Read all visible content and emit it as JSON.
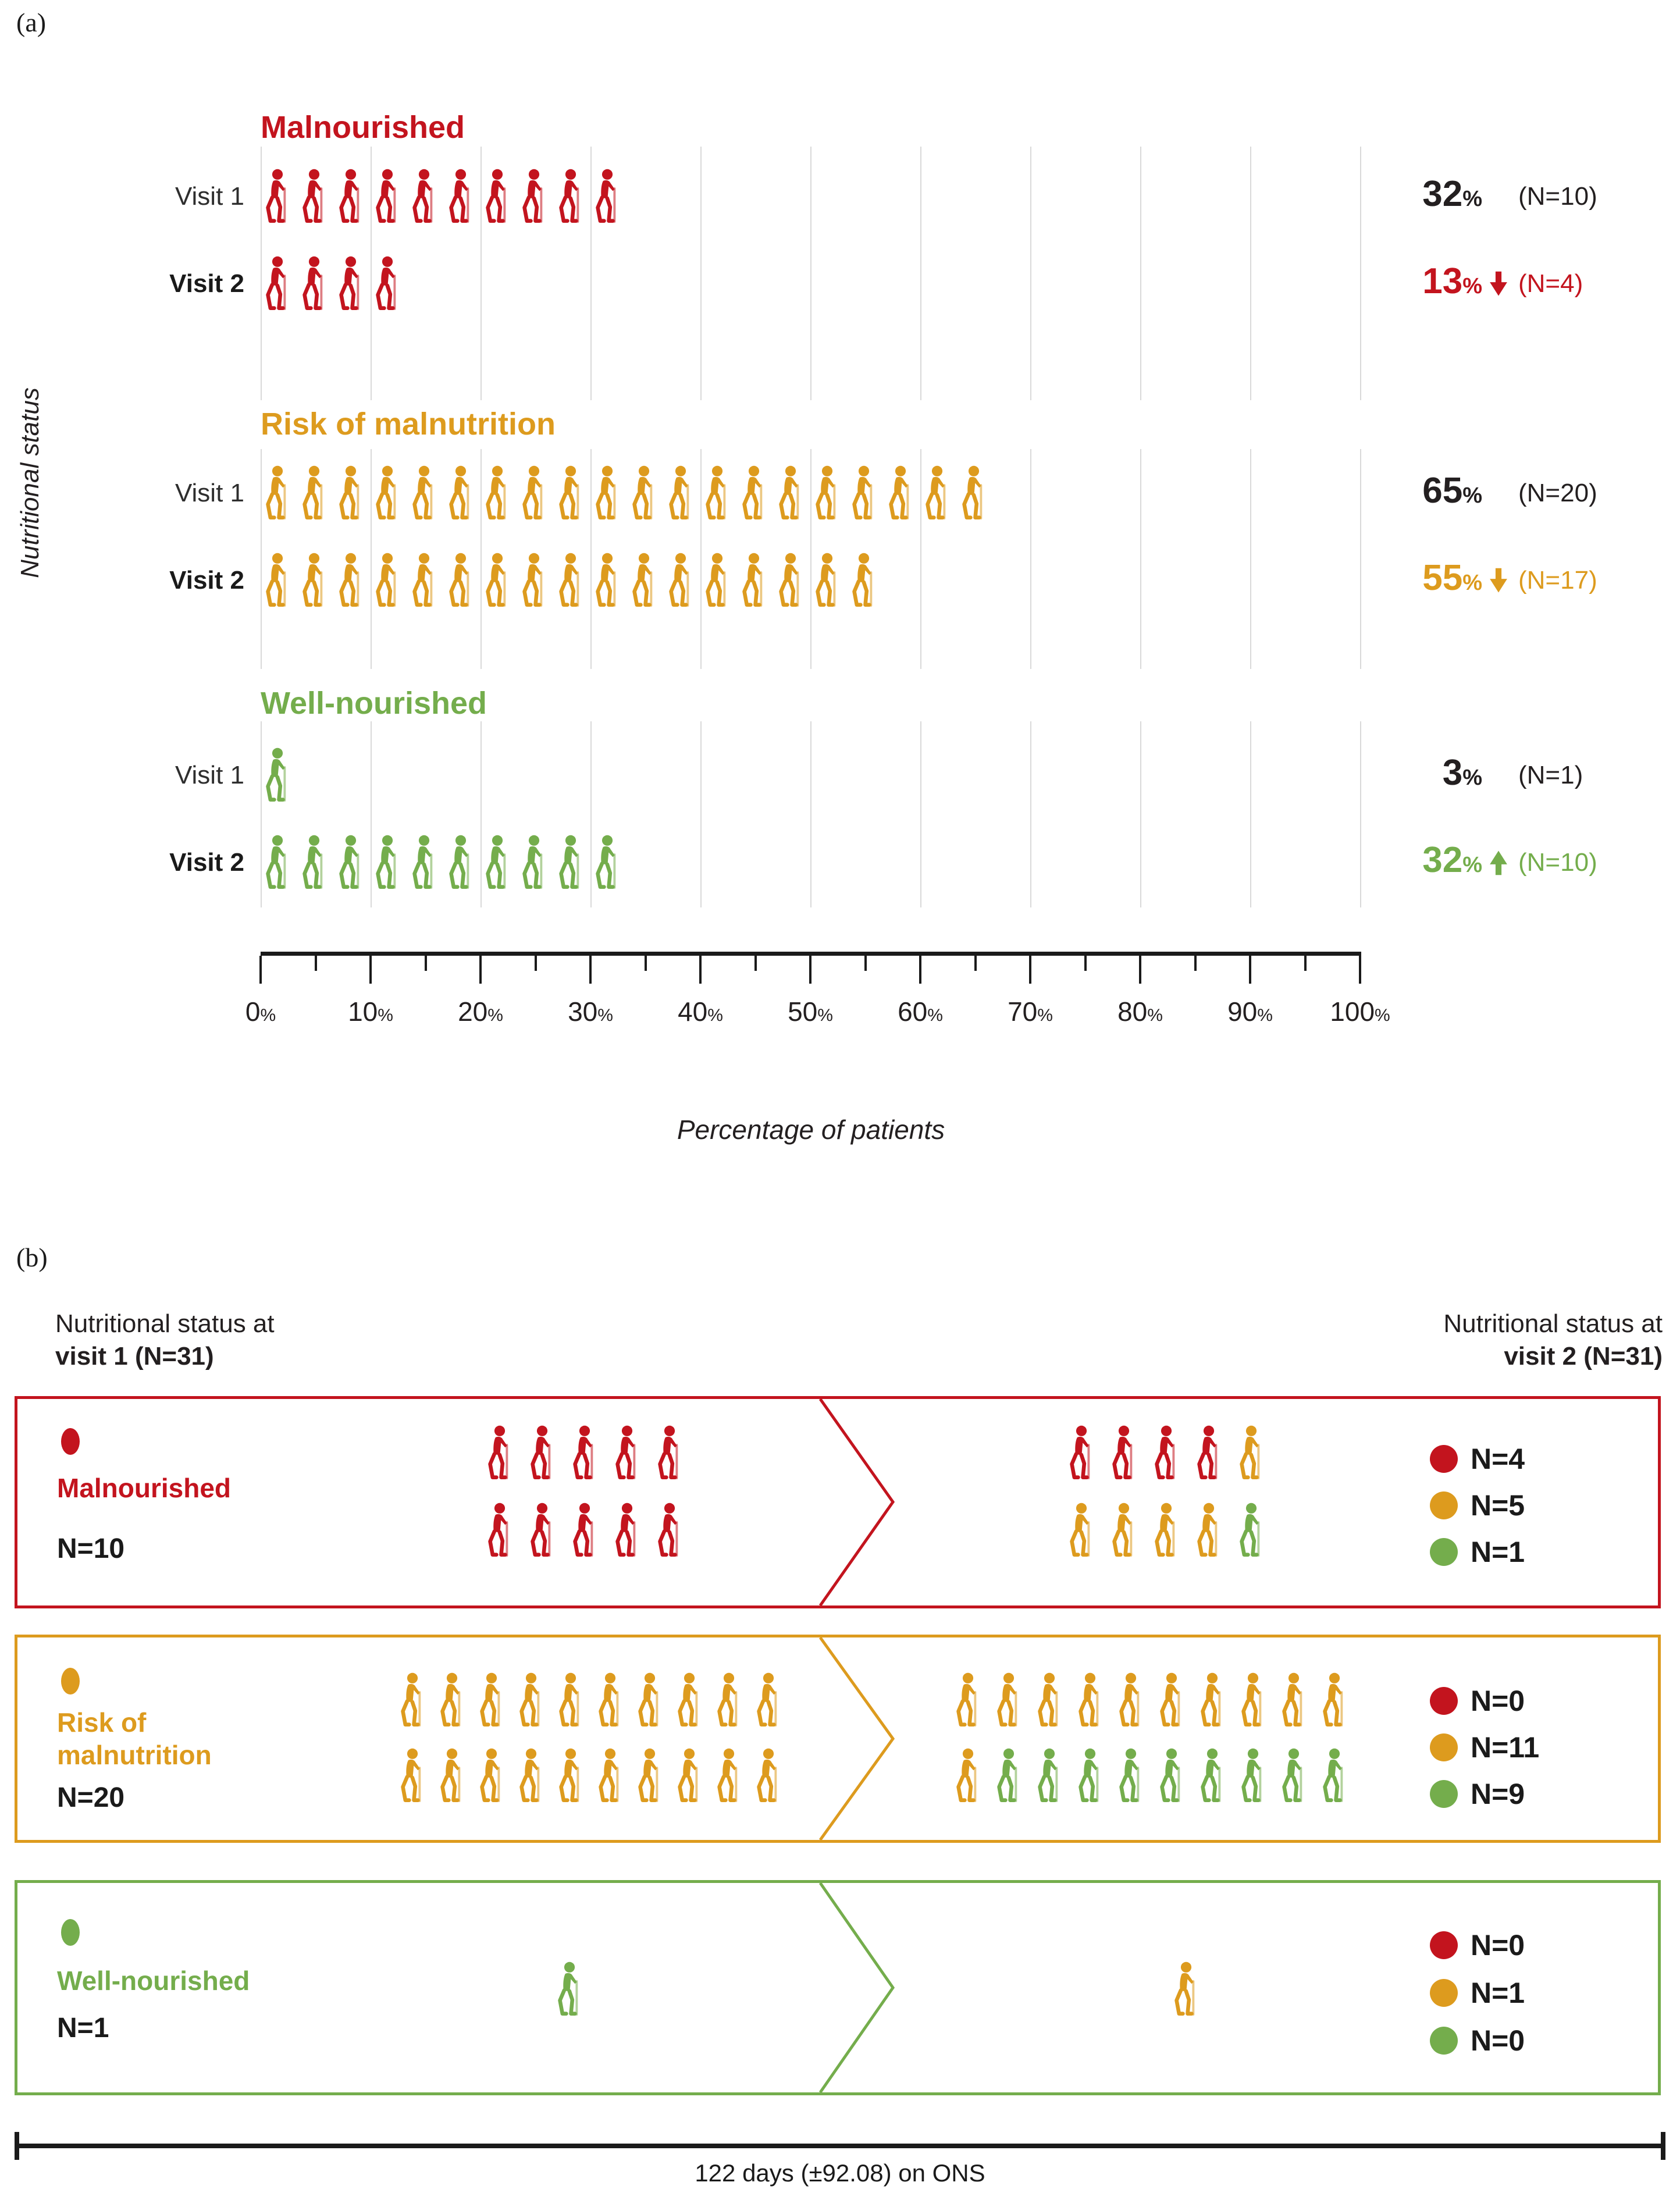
{
  "colors": {
    "red": "#c3141e",
    "orange": "#dd9b1e",
    "green": "#74ad4c",
    "text": "#231f20",
    "grid": "#d9d9d9",
    "axis": "#1a1a1a"
  },
  "panel_a": {
    "label": "(a)",
    "y_axis_label": "Nutritional status",
    "x_axis_label": "Percentage of patients",
    "axis": {
      "tick_labels": [
        "0",
        "10",
        "20",
        "30",
        "40",
        "50",
        "60",
        "70",
        "80",
        "90",
        "100"
      ],
      "tick_suffix": "%"
    },
    "groups": [
      {
        "name": "Malnourished",
        "color_key": "red",
        "rows": [
          {
            "visit": "Visit 1",
            "count": 10,
            "percent": "32",
            "percent_suffix": "%",
            "n": "(N=10)",
            "trend": null
          },
          {
            "visit": "Visit 2",
            "count": 4,
            "percent": "13",
            "percent_suffix": "%",
            "n": "(N=4)",
            "trend": "down"
          }
        ]
      },
      {
        "name": "Risk of malnutrition",
        "color_key": "orange",
        "rows": [
          {
            "visit": "Visit 1",
            "count": 20,
            "percent": "65",
            "percent_suffix": "%",
            "n": "(N=20)",
            "trend": null
          },
          {
            "visit": "Visit 2",
            "count": 17,
            "percent": "55",
            "percent_suffix": "%",
            "n": "(N=17)",
            "trend": "down"
          }
        ]
      },
      {
        "name": "Well-nourished",
        "color_key": "green",
        "rows": [
          {
            "visit": "Visit 1",
            "count": 1,
            "percent": "3",
            "percent_suffix": "%",
            "n": "(N=1)",
            "trend": null
          },
          {
            "visit": "Visit 2",
            "count": 10,
            "percent": "32",
            "percent_suffix": "%",
            "n": "(N=10)",
            "trend": "up"
          }
        ]
      }
    ]
  },
  "panel_b": {
    "label": "(b)",
    "left_header": {
      "line1": "Nutritional status at",
      "line2": "visit 1 (N=31)"
    },
    "right_header": {
      "line1": "Nutritional status at",
      "line2": "visit 2 (N=31)"
    },
    "rows": [
      {
        "color_key": "red",
        "title_lines": [
          "Malnourished"
        ],
        "n_label": "N=10",
        "left_icon_rows": [
          [
            "red",
            "red",
            "red",
            "red",
            "red"
          ],
          [
            "red",
            "red",
            "red",
            "red",
            "red"
          ]
        ],
        "right_icon_rows": [
          [
            "red",
            "red",
            "red",
            "red",
            "orange"
          ],
          [
            "orange",
            "orange",
            "orange",
            "orange",
            "green"
          ]
        ],
        "legend": [
          {
            "color": "red",
            "label": "N=4"
          },
          {
            "color": "orange",
            "label": "N=5"
          },
          {
            "color": "green",
            "label": "N=1"
          }
        ]
      },
      {
        "color_key": "orange",
        "title_lines": [
          "Risk of",
          "malnutrition"
        ],
        "n_label": "N=20",
        "left_icon_rows": [
          [
            "orange",
            "orange",
            "orange",
            "orange",
            "orange",
            "orange",
            "orange",
            "orange",
            "orange",
            "orange"
          ],
          [
            "orange",
            "orange",
            "orange",
            "orange",
            "orange",
            "orange",
            "orange",
            "orange",
            "orange",
            "orange"
          ]
        ],
        "right_icon_rows": [
          [
            "orange",
            "orange",
            "orange",
            "orange",
            "orange",
            "orange",
            "orange",
            "orange",
            "orange",
            "orange"
          ],
          [
            "orange",
            "green",
            "green",
            "green",
            "green",
            "green",
            "green",
            "green",
            "green",
            "green"
          ]
        ],
        "legend": [
          {
            "color": "red",
            "label": "N=0"
          },
          {
            "color": "orange",
            "label": "N=11"
          },
          {
            "color": "green",
            "label": "N=9"
          }
        ]
      },
      {
        "color_key": "green",
        "title_lines": [
          "Well-nourished"
        ],
        "n_label": "N=1",
        "left_icon_rows": [
          [
            "green"
          ]
        ],
        "right_icon_rows": [
          [
            "orange"
          ]
        ],
        "legend": [
          {
            "color": "red",
            "label": "N=0"
          },
          {
            "color": "orange",
            "label": "N=1"
          },
          {
            "color": "green",
            "label": "N=0"
          }
        ]
      }
    ],
    "footer": "122 days (±92.08) on ONS"
  },
  "chart_data": [
    {
      "id": "a",
      "type": "bar",
      "subtype": "pictogram",
      "unit": "1 icon = 1 patient",
      "xlabel": "Percentage of patients",
      "ylabel": "Nutritional status",
      "xlim": [
        0,
        100
      ],
      "x_tick_step": 10,
      "grid": true,
      "categories": [
        "Malnourished",
        "Risk of malnutrition",
        "Well-nourished"
      ],
      "series": [
        {
          "name": "Visit 1",
          "values_percent": [
            32,
            65,
            3
          ],
          "values_n": [
            10,
            20,
            1
          ]
        },
        {
          "name": "Visit 2",
          "values_percent": [
            13,
            55,
            32
          ],
          "values_n": [
            4,
            17,
            10
          ],
          "change_direction": [
            "down",
            "down",
            "up"
          ]
        }
      ]
    },
    {
      "id": "b",
      "type": "flow",
      "total_n": 31,
      "from_label": "Nutritional status at visit 1 (N=31)",
      "to_label": "Nutritional status at visit 2 (N=31)",
      "flows": [
        {
          "from": "Malnourished",
          "from_n": 10,
          "to": {
            "Malnourished": 4,
            "Risk of malnutrition": 5,
            "Well-nourished": 1
          }
        },
        {
          "from": "Risk of malnutrition",
          "from_n": 20,
          "to": {
            "Malnourished": 0,
            "Risk of malnutrition": 11,
            "Well-nourished": 9
          }
        },
        {
          "from": "Well-nourished",
          "from_n": 1,
          "to": {
            "Malnourished": 0,
            "Risk of malnutrition": 1,
            "Well-nourished": 0
          }
        }
      ],
      "footer": "122 days (±92.08) on ONS"
    }
  ]
}
